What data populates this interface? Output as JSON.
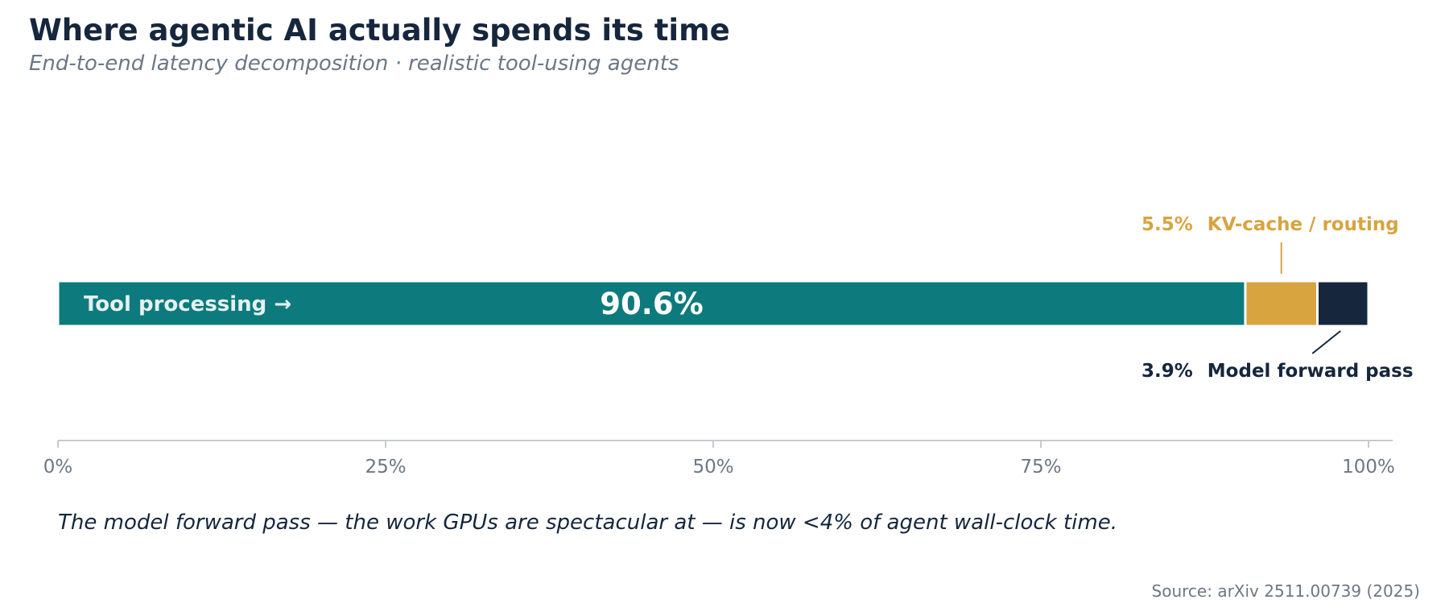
{
  "title": "Where agentic AI actually spends its time",
  "subtitle": "End-to-end latency decomposition · realistic tool-using agents",
  "caption": "The model forward pass — the work GPUs are spectacular at — is now <4% of agent wall-clock time.",
  "source": "Source: arXiv 2511.00739 (2025)",
  "colors": {
    "tool": "#0d7b7d",
    "kv": "#d7a43f",
    "model": "#15263d",
    "axis": "#c5cad1",
    "tick_text": "#6b7785"
  },
  "chart_data": {
    "type": "bar",
    "orientation": "horizontal",
    "stacked": true,
    "xlim": [
      0,
      100
    ],
    "x_ticks": [
      0,
      25,
      50,
      75,
      100
    ],
    "x_tick_labels": [
      "0%",
      "25%",
      "50%",
      "75%",
      "100%"
    ],
    "grid": false,
    "segments": [
      {
        "name": "Tool processing",
        "label": "Tool processing →",
        "value": 90.6,
        "value_label": "90.6%",
        "color": "#0d7b7d"
      },
      {
        "name": "KV-cache / routing",
        "label": "KV-cache / routing",
        "value": 5.5,
        "value_label": "5.5%",
        "color": "#d7a43f"
      },
      {
        "name": "Model forward pass",
        "label": "Model forward pass",
        "value": 3.9,
        "value_label": "3.9%",
        "color": "#15263d"
      }
    ]
  }
}
